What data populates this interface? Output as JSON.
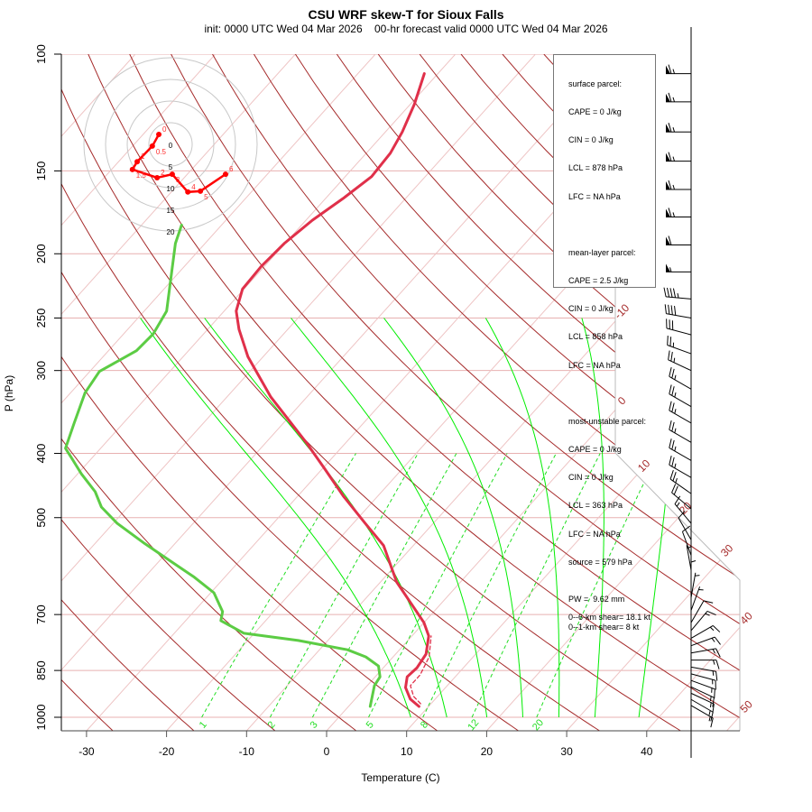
{
  "header": {
    "title": "CSU WRF skew-T for Sioux Falls",
    "subtitle": "init: 0000 UTC Wed 04 Mar 2026    00-hr forecast valid 0000 UTC Wed 04 Mar 2026"
  },
  "info_box": {
    "surface": [
      "surface parcel:",
      "CAPE = 0 J/kg",
      "CIN = 0 J/kg",
      "LCL = 878 hPa",
      "LFC = NA hPa"
    ],
    "mean_layer": [
      "mean-layer parcel:",
      "CAPE = 2.5 J/kg",
      "CIN = 0 J/kg",
      "LCL = 858 hPa",
      "LFC = NA hPa"
    ],
    "most_unstable": [
      "most-unstable parcel:",
      "CAPE = 0 J/kg",
      "CIN = 0 J/kg",
      "LCL = 363 hPa",
      "LFC = NA hPa",
      "source = 579 hPa"
    ],
    "pw": "PW =  9.62 mm",
    "shear": [
      "0--6-km shear= 18.1 kt",
      "0--1-km shear= 8 kt"
    ]
  },
  "chart_data": {
    "type": "line",
    "subtype": "skew-T log-P",
    "xlabel": "Temperature (C)",
    "ylabel": "P (hPa)",
    "x_ticks": [
      -30,
      -20,
      -10,
      0,
      10,
      20,
      30,
      40
    ],
    "y_ticks": [
      100,
      150,
      200,
      250,
      300,
      400,
      500,
      700,
      850,
      1000
    ],
    "ylim": [
      1000,
      100
    ],
    "isotherm_labels": [
      -10,
      0,
      10,
      20,
      30,
      40,
      50
    ],
    "mixing_ratio_labels": [
      1,
      2,
      3,
      5,
      8,
      12,
      20
    ],
    "moist_adiabat_start_temps": [
      9,
      13.5,
      18.5,
      23,
      27.5,
      32,
      37.5
    ],
    "series": [
      {
        "name": "temperature",
        "color": "#e0304a",
        "points": [
          [
            963,
            8.8
          ],
          [
            939,
            6.9
          ],
          [
            902,
            5.0
          ],
          [
            869,
            4.0
          ],
          [
            842,
            4.2
          ],
          [
            803,
            3.8
          ],
          [
            754,
            2.1
          ],
          [
            720,
            0.0
          ],
          [
            672,
            -3.9
          ],
          [
            625,
            -8.0
          ],
          [
            551,
            -13.7
          ],
          [
            510,
            -18.5
          ],
          [
            464,
            -24.3
          ],
          [
            422,
            -29.7
          ],
          [
            385,
            -35.0
          ],
          [
            329,
            -44.5
          ],
          [
            286,
            -51.9
          ],
          [
            260,
            -56.1
          ],
          [
            244,
            -58.5
          ],
          [
            226,
            -60.2
          ],
          [
            209,
            -60.4
          ],
          [
            193,
            -60.1
          ],
          [
            178,
            -59.2
          ],
          [
            165,
            -57.8
          ],
          [
            153,
            -56.7
          ],
          [
            141,
            -57.0
          ],
          [
            131,
            -57.9
          ],
          [
            119,
            -59.5
          ],
          [
            107,
            -61.7
          ]
        ]
      },
      {
        "name": "dewpoint",
        "color": "#5ccc44",
        "points": [
          [
            963,
            2.7
          ],
          [
            896,
            0.9
          ],
          [
            869,
            0.6
          ],
          [
            837,
            -0.8
          ],
          [
            811,
            -3.4
          ],
          [
            791,
            -6.5
          ],
          [
            766,
            -13.7
          ],
          [
            747,
            -21.3
          ],
          [
            715,
            -25.6
          ],
          [
            693,
            -26.4
          ],
          [
            649,
            -29.6
          ],
          [
            615,
            -33.8
          ],
          [
            582,
            -38.5
          ],
          [
            547,
            -43.8
          ],
          [
            510,
            -49.5
          ],
          [
            482,
            -53.3
          ],
          [
            457,
            -55.8
          ],
          [
            429,
            -59.6
          ],
          [
            409,
            -62.2
          ],
          [
            393,
            -64.4
          ],
          [
            361,
            -66.1
          ],
          [
            324,
            -68.2
          ],
          [
            301,
            -68.8
          ],
          [
            280,
            -66.5
          ],
          [
            264,
            -66.3
          ],
          [
            244,
            -67.2
          ],
          [
            212,
            -71.1
          ],
          [
            193,
            -73.7
          ],
          [
            181,
            -75.0
          ]
        ]
      },
      {
        "name": "parcel",
        "color": "#e0304a",
        "dashed": true,
        "points": [
          [
            954,
            8.7
          ],
          [
            930,
            7.0
          ],
          [
            896,
            5.4
          ],
          [
            863,
            5.4
          ],
          [
            811,
            4.5
          ],
          [
            754,
            2.4
          ]
        ]
      }
    ],
    "wind_barbs": [
      [
        107,
        270,
        65
      ],
      [
        118,
        270,
        65
      ],
      [
        131,
        270,
        65
      ],
      [
        145,
        270,
        65
      ],
      [
        160,
        270,
        65
      ],
      [
        176,
        270,
        65
      ],
      [
        194,
        270,
        60
      ],
      [
        213,
        270,
        55
      ],
      [
        234,
        275,
        45
      ],
      [
        250,
        280,
        40
      ],
      [
        265,
        285,
        30
      ],
      [
        283,
        290,
        25
      ],
      [
        300,
        295,
        25
      ],
      [
        320,
        300,
        25
      ],
      [
        340,
        300,
        25
      ],
      [
        360,
        300,
        25
      ],
      [
        385,
        300,
        25
      ],
      [
        410,
        300,
        25
      ],
      [
        435,
        300,
        25
      ],
      [
        460,
        305,
        25
      ],
      [
        485,
        310,
        20
      ],
      [
        510,
        320,
        15
      ],
      [
        540,
        330,
        10
      ],
      [
        570,
        340,
        10
      ],
      [
        600,
        350,
        5
      ],
      [
        630,
        0,
        5
      ],
      [
        660,
        10,
        5
      ],
      [
        690,
        20,
        5
      ],
      [
        720,
        30,
        10
      ],
      [
        740,
        40,
        15
      ],
      [
        760,
        60,
        15
      ],
      [
        780,
        70,
        15
      ],
      [
        800,
        80,
        15
      ],
      [
        820,
        90,
        15
      ],
      [
        840,
        100,
        15
      ],
      [
        860,
        105,
        15
      ],
      [
        880,
        110,
        15
      ],
      [
        900,
        115,
        15
      ],
      [
        920,
        115,
        15
      ],
      [
        940,
        120,
        15
      ],
      [
        960,
        120,
        15
      ]
    ],
    "hodograph": {
      "ring_labels": [
        "0",
        "5",
        "10",
        "15",
        "20"
      ],
      "ring_speeds": [
        5,
        10,
        15,
        20
      ],
      "points": [
        {
          "label": "0",
          "u": -2.7,
          "v": 2.3
        },
        {
          "label": "0.5",
          "u": -4.2,
          "v": -0.4
        },
        {
          "label": "1",
          "u": -7.7,
          "v": -4.0
        },
        {
          "label": "1.5",
          "u": -8.8,
          "v": -5.8
        },
        {
          "label": "2",
          "u": -3.1,
          "v": -7.7
        },
        {
          "label": "3",
          "u": 0.4,
          "v": -6.9
        },
        {
          "label": "4",
          "u": 4.0,
          "v": -11.0
        },
        {
          "label": "5",
          "u": 6.9,
          "v": -10.8
        },
        {
          "label": "6",
          "u": 12.7,
          "v": -6.9
        }
      ],
      "color": "#ff0000"
    }
  }
}
